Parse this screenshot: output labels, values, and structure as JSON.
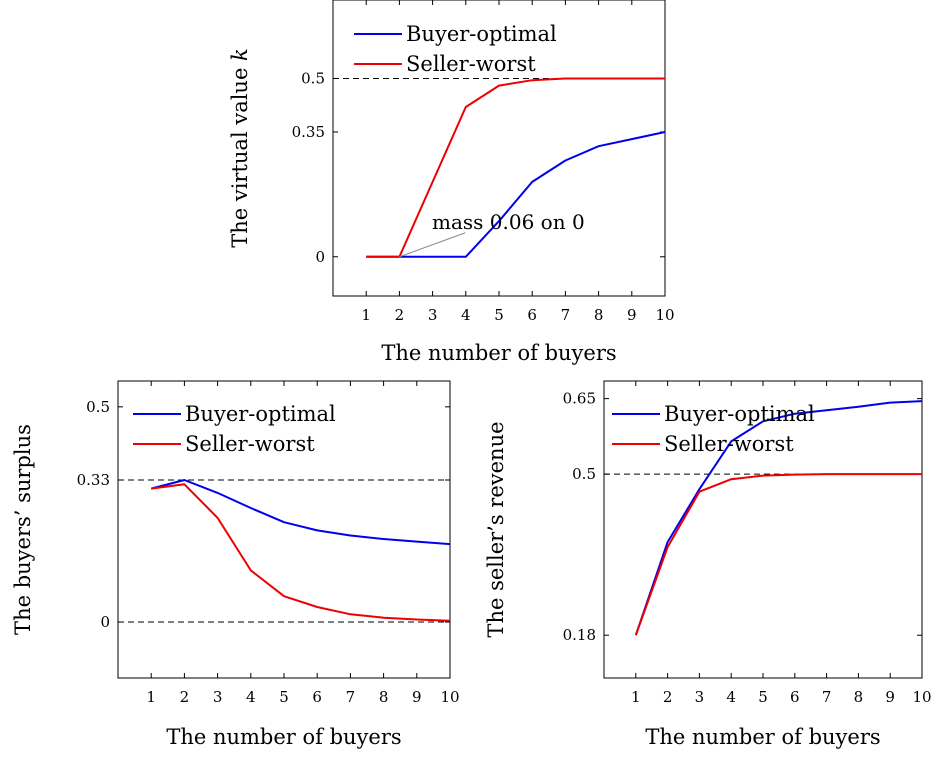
{
  "chart_data": [
    {
      "type": "line",
      "xlabel": "The number of buyers",
      "ylabel": "The virtual value k",
      "x": [
        1,
        2,
        3,
        4,
        5,
        6,
        7,
        8,
        9,
        10
      ],
      "xlim": [
        0,
        10
      ],
      "ylim": [
        -0.11,
        0.72
      ],
      "yticks": [
        0,
        0.35,
        0.5
      ],
      "ytick_labels": [
        "0",
        "0.35",
        "0.5"
      ],
      "reference_lines": [
        0.5
      ],
      "legend_position": "top-left",
      "annotation": {
        "text": "mass 0.06 on 0",
        "x": 2,
        "y": 0
      },
      "series": [
        {
          "name": "Buyer-optimal",
          "color": "#0000ee",
          "values": [
            0,
            0,
            0,
            0,
            0.1,
            0.21,
            0.27,
            0.31,
            0.33,
            0.35
          ]
        },
        {
          "name": "Seller-worst",
          "color": "#ee0000",
          "values": [
            0,
            0,
            0.21,
            0.42,
            0.48,
            0.495,
            0.5,
            0.5,
            0.5,
            0.5
          ]
        }
      ]
    },
    {
      "type": "line",
      "xlabel": "The number of buyers",
      "ylabel": "The buyers’ surplus",
      "x": [
        1,
        2,
        3,
        4,
        5,
        6,
        7,
        8,
        9,
        10
      ],
      "xlim": [
        0,
        10
      ],
      "ylim": [
        -0.13,
        0.56
      ],
      "yticks": [
        0,
        0.33,
        0.5
      ],
      "ytick_labels": [
        "0",
        "0.33",
        "0.5"
      ],
      "reference_lines": [
        0.33,
        0
      ],
      "legend_position": "top-left",
      "series": [
        {
          "name": "Buyer-optimal",
          "color": "#0000ee",
          "values": [
            0.31,
            0.33,
            0.3,
            0.265,
            0.232,
            0.213,
            0.201,
            0.193,
            0.187,
            0.181
          ]
        },
        {
          "name": "Seller-worst",
          "color": "#ee0000",
          "values": [
            0.31,
            0.32,
            0.242,
            0.12,
            0.06,
            0.035,
            0.018,
            0.01,
            0.006,
            0.003
          ]
        }
      ]
    },
    {
      "type": "line",
      "xlabel": "The number of buyers",
      "ylabel": "The seller’s revenue",
      "x": [
        1,
        2,
        3,
        4,
        5,
        6,
        7,
        8,
        9,
        10
      ],
      "xlim": [
        0,
        10
      ],
      "ylim": [
        0.095,
        0.685
      ],
      "yticks": [
        0.18,
        0.5,
        0.65
      ],
      "ytick_labels": [
        "0.18",
        "0.5",
        "0.65"
      ],
      "reference_lines": [
        0.5
      ],
      "legend_position": "top-left",
      "series": [
        {
          "name": "Buyer-optimal",
          "color": "#0000ee",
          "values": [
            0.18,
            0.365,
            0.47,
            0.565,
            0.605,
            0.62,
            0.627,
            0.634,
            0.642,
            0.645
          ]
        },
        {
          "name": "Seller-worst",
          "color": "#ee0000",
          "values": [
            0.18,
            0.355,
            0.465,
            0.49,
            0.497,
            0.499,
            0.5,
            0.5,
            0.5,
            0.5
          ]
        }
      ]
    }
  ]
}
